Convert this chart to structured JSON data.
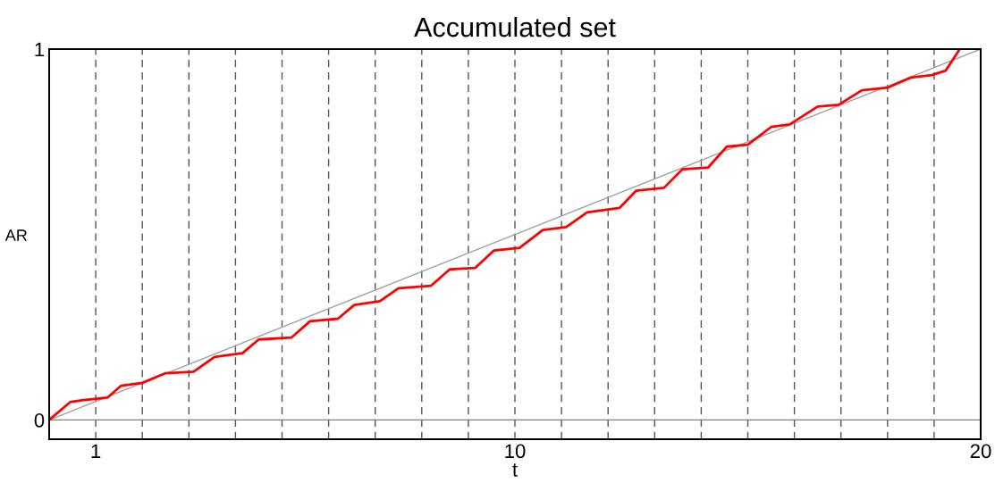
{
  "chart_data": {
    "type": "line",
    "title": "Accumulated set",
    "xlabel": "t",
    "ylabel": "AR",
    "xlim": [
      0,
      20
    ],
    "ylim": [
      -0.052,
      1
    ],
    "xticks": [
      {
        "value": 1,
        "label": "1"
      },
      {
        "value": 2,
        "label": null
      },
      {
        "value": 3,
        "label": null
      },
      {
        "value": 4,
        "label": null
      },
      {
        "value": 5,
        "label": null
      },
      {
        "value": 6,
        "label": null
      },
      {
        "value": 7,
        "label": null
      },
      {
        "value": 8,
        "label": null
      },
      {
        "value": 9,
        "label": null
      },
      {
        "value": 10,
        "label": "10"
      },
      {
        "value": 11,
        "label": null
      },
      {
        "value": 12,
        "label": null
      },
      {
        "value": 13,
        "label": null
      },
      {
        "value": 14,
        "label": null
      },
      {
        "value": 15,
        "label": null
      },
      {
        "value": 16,
        "label": null
      },
      {
        "value": 17,
        "label": null
      },
      {
        "value": 18,
        "label": null
      },
      {
        "value": 19,
        "label": null
      },
      {
        "value": 20,
        "label": "20"
      }
    ],
    "yticks": [
      0,
      1
    ],
    "grid": "x",
    "legend": false,
    "ref_lines": [
      {
        "axis": "y",
        "value": 0,
        "color": "#808080",
        "line_style": "solid"
      }
    ],
    "series": [
      {
        "color": "#a0a0a0",
        "x": [
          0,
          20
        ],
        "values": [
          0,
          1
        ]
      },
      {
        "color": "#ff0000",
        "x": [
          0,
          0.45,
          0.7,
          1.25,
          1.54,
          2.0,
          2.5,
          3.1,
          3.55,
          4.15,
          4.5,
          5.2,
          5.6,
          6.2,
          6.55,
          7.1,
          7.5,
          8.2,
          8.6,
          9.15,
          9.55,
          10.1,
          10.6,
          11.1,
          11.55,
          12.25,
          12.6,
          13.2,
          13.6,
          14.15,
          14.55,
          15.0,
          15.5,
          15.9,
          16.5,
          16.95,
          17.45,
          18.0,
          18.5,
          18.95,
          19.25,
          19.55
        ],
        "values": [
          0,
          0.048,
          0.053,
          0.06,
          0.092,
          0.1,
          0.126,
          0.13,
          0.17,
          0.18,
          0.217,
          0.222,
          0.266,
          0.273,
          0.31,
          0.32,
          0.355,
          0.362,
          0.406,
          0.41,
          0.457,
          0.464,
          0.512,
          0.52,
          0.56,
          0.572,
          0.618,
          0.626,
          0.676,
          0.681,
          0.737,
          0.742,
          0.79,
          0.797,
          0.845,
          0.85,
          0.889,
          0.896,
          0.923,
          0.93,
          0.942,
          1.0
        ]
      }
    ]
  }
}
